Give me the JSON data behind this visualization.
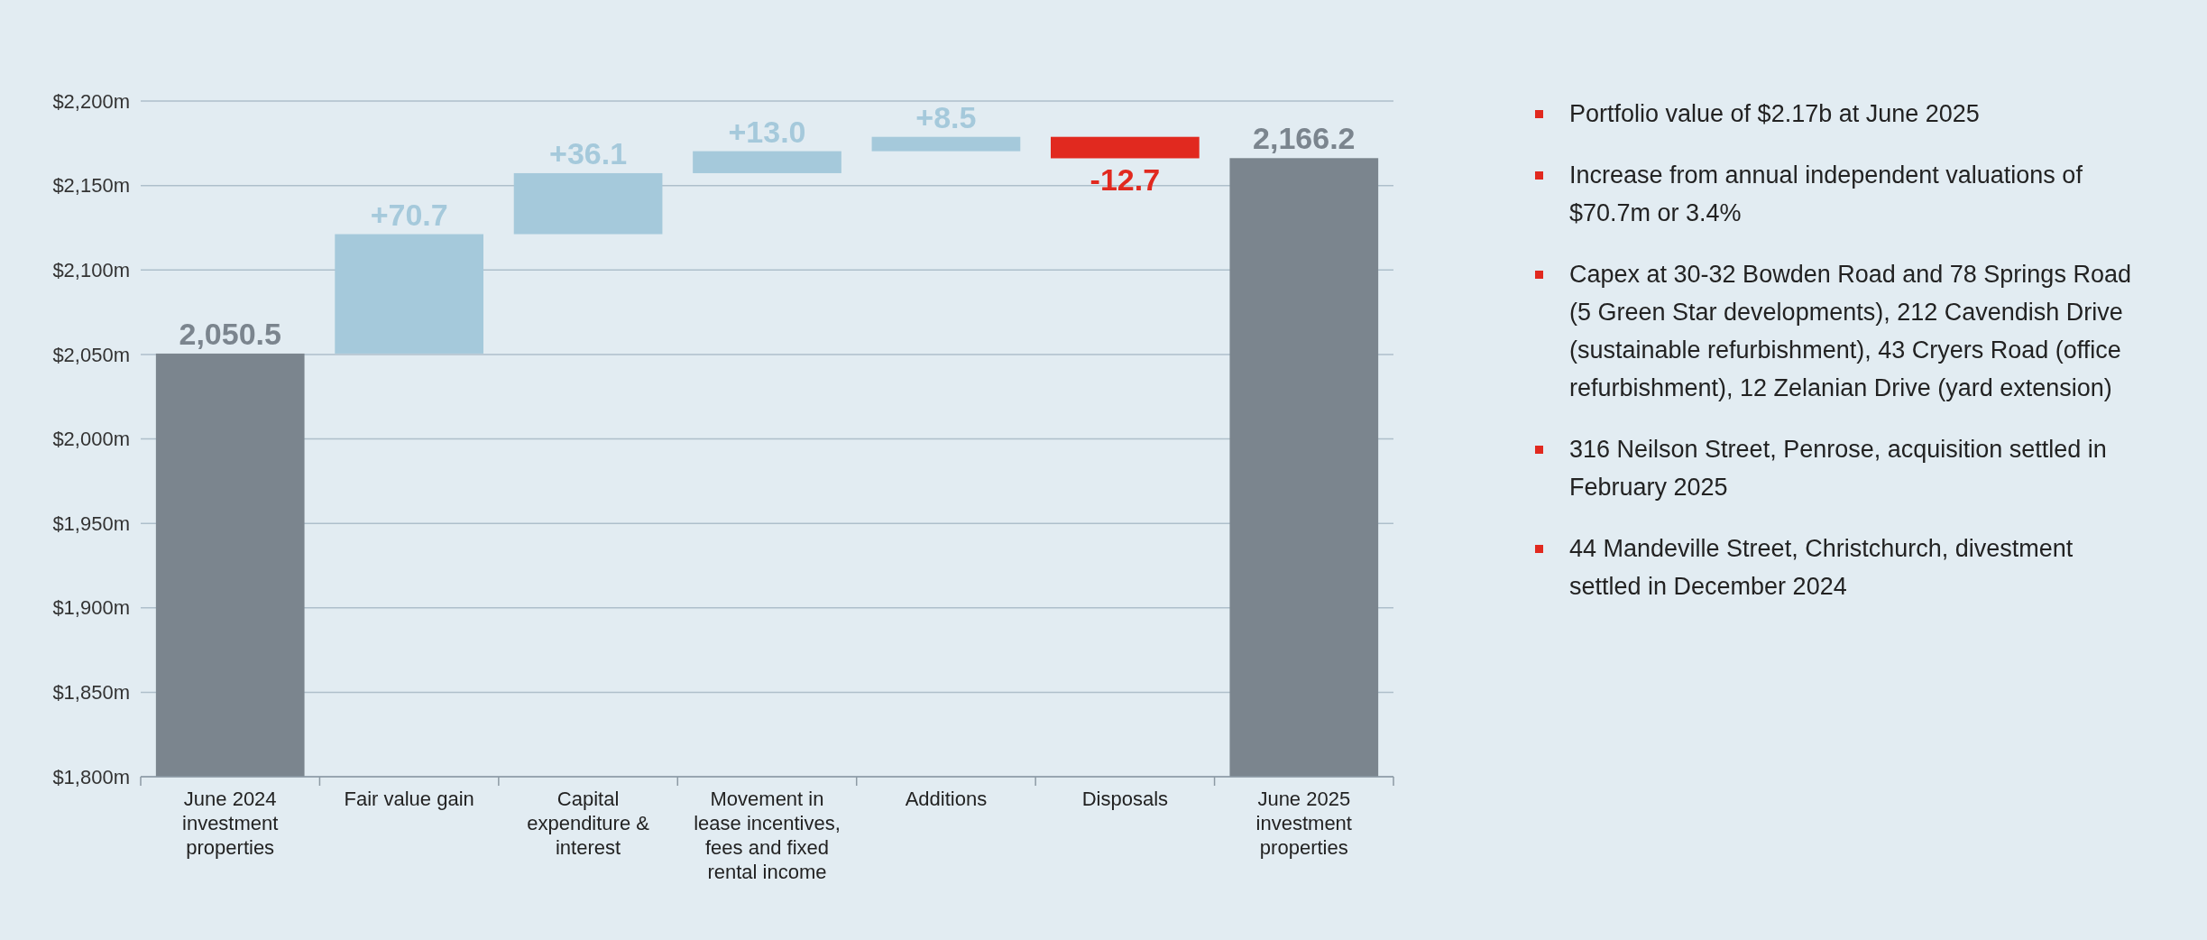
{
  "chart_data": {
    "type": "bar",
    "categories": [
      "June 2024 investment properties",
      "Fair value gain",
      "Capital expenditure & interest",
      "Movement in lease incentives, fees and fixed rental income",
      "Additions",
      "Disposals",
      "June 2025 investment properties"
    ],
    "values": [
      2050.5,
      70.7,
      36.1,
      13.0,
      8.5,
      -12.7,
      2166.2
    ],
    "base": [
      null,
      2050.5,
      2121.2,
      2157.3,
      2170.3,
      2178.8,
      null
    ],
    "colors": [
      "#7b858e",
      "#a5c9db",
      "#a5c9db",
      "#a5c9db",
      "#a5c9db",
      "#e1291f",
      "#7b858e"
    ],
    "value_labels": [
      "2,050.5",
      "+70.7",
      "+36.1",
      "+13.0",
      "+8.5",
      "-12.7",
      "2,166.2"
    ],
    "ylim": [
      1800,
      2200
    ],
    "yticks": [
      {
        "value": 1800,
        "label": "$1,800m"
      },
      {
        "value": 1850,
        "label": "$1,850m"
      },
      {
        "value": 1900,
        "label": "$1,900m"
      },
      {
        "value": 1950,
        "label": "$1,950m"
      },
      {
        "value": 2000,
        "label": "$2,000m"
      },
      {
        "value": 2050,
        "label": "$2,050m"
      },
      {
        "value": 2100,
        "label": "$2,100m"
      },
      {
        "value": 2150,
        "label": "$2,150m"
      },
      {
        "value": 2200,
        "label": "$2,200m"
      }
    ],
    "grid": "y",
    "annotations": [
      "Portfolio value of $2.17b at June 2025",
      "Increase from annual independent valuations of $70.7m or 3.4%",
      "Capex at 30-32 Bowden Road and 78 Springs Road (5 Green Star developments), 212 Cavendish Drive (sustainable refurbishment), 43 Cryers Road (office refurbishment), 12 Zelanian Drive (yard extension)",
      "316 Neilson Street, Penrose, acquisition settled in February 2025",
      "44 Mandeville Street, Christchurch, divestment settled in December 2024"
    ]
  }
}
